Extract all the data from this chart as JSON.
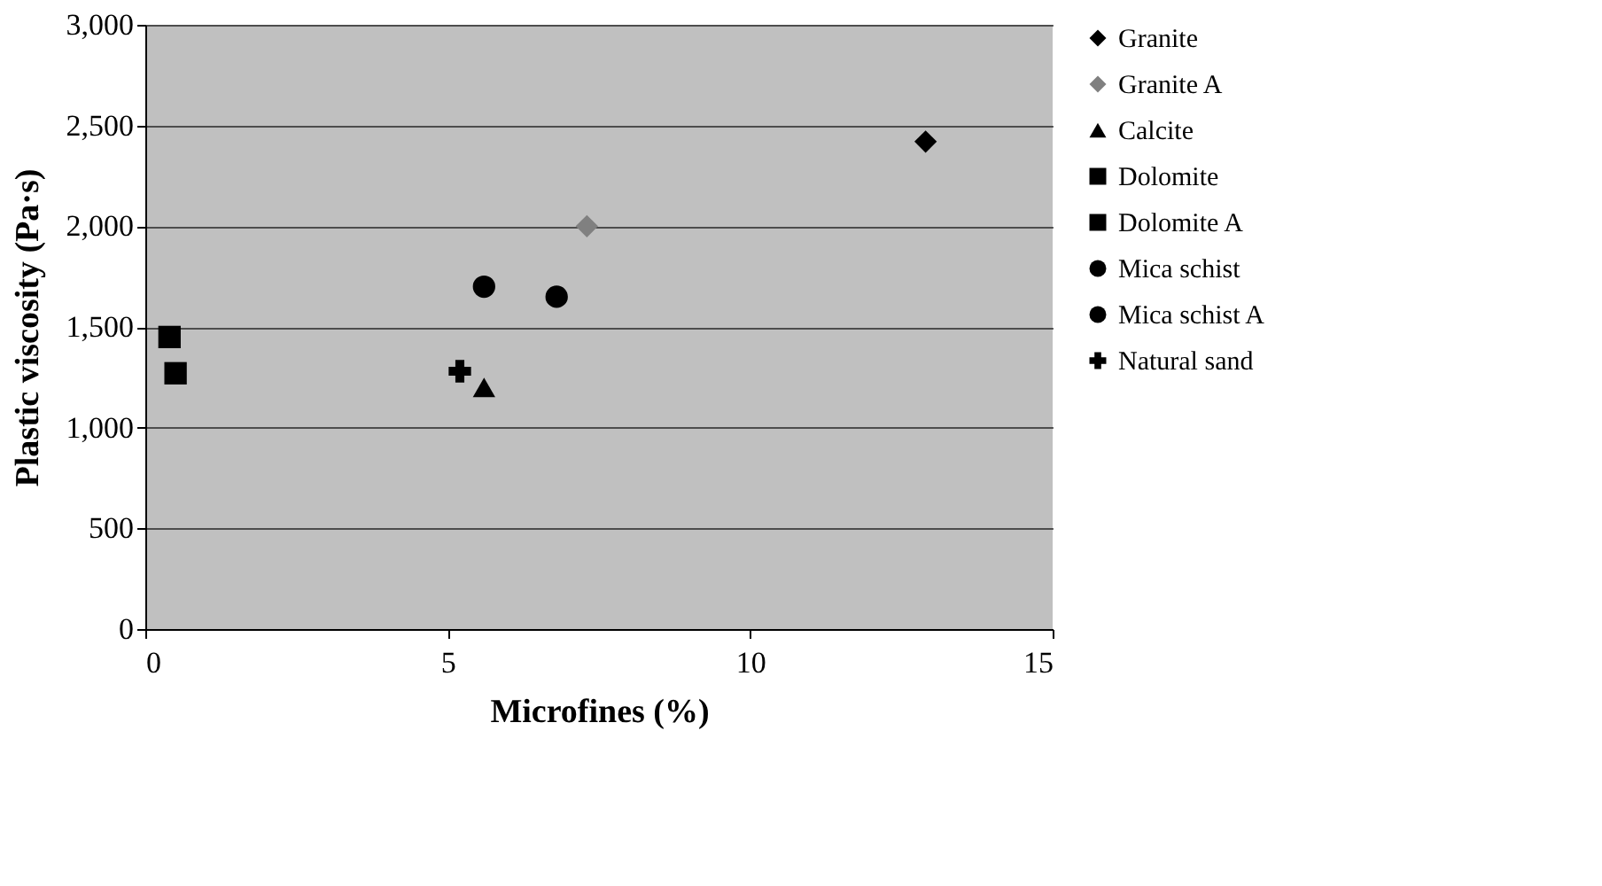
{
  "chart_data": {
    "type": "scatter",
    "xlabel": "Microfines (%)",
    "ylabel": "Plastic viscosity (Pa·s)",
    "xlim": [
      0,
      15
    ],
    "xticks": [
      0,
      5,
      10,
      15
    ],
    "ylim": [
      0,
      3000
    ],
    "yticks": [
      {
        "value": 0,
        "label": "0"
      },
      {
        "value": 500,
        "label": "500"
      },
      {
        "value": 1000,
        "label": "1,000"
      },
      {
        "value": 1500,
        "label": "1,500"
      },
      {
        "value": 2000,
        "label": "2,000"
      },
      {
        "value": 2500,
        "label": "2,500"
      },
      {
        "value": 3000,
        "label": "3,000"
      }
    ],
    "grid": "y",
    "legend": "right",
    "series": [
      {
        "name": "Granite",
        "color": "#000000",
        "marker": "diamond",
        "x": [
          12.9
        ],
        "values": [
          2420
        ]
      },
      {
        "name": "Granite A",
        "color": "#808080",
        "marker": "diamond",
        "x": [
          7.3
        ],
        "values": [
          2000
        ]
      },
      {
        "name": "Calcite",
        "color": "#000000",
        "marker": "triangle",
        "x": [
          5.6
        ],
        "values": [
          1200
        ]
      },
      {
        "name": "Dolomite",
        "color": "#000000",
        "marker": "square",
        "x": [
          0.4
        ],
        "values": [
          1450
        ]
      },
      {
        "name": "Dolomite A",
        "color": "#000000",
        "marker": "square",
        "x": [
          0.5
        ],
        "values": [
          1270
        ]
      },
      {
        "name": "Mica schist",
        "color": "#000000",
        "marker": "circle",
        "x": [
          6.8
        ],
        "values": [
          1650
        ]
      },
      {
        "name": "Mica schist A",
        "color": "#000000",
        "marker": "circle",
        "x": [
          5.6
        ],
        "values": [
          1700
        ]
      },
      {
        "name": "Natural sand",
        "color": "#000000",
        "marker": "cross",
        "x": [
          5.2
        ],
        "values": [
          1280
        ]
      }
    ]
  }
}
